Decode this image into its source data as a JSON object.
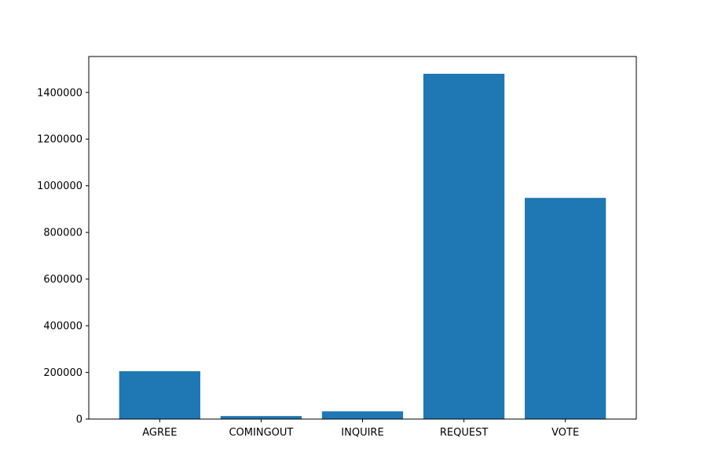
{
  "chart_data": {
    "type": "bar",
    "title": "",
    "xlabel": "",
    "ylabel": "",
    "categories": [
      "AGREE",
      "COMINGOUT",
      "INQUIRE",
      "REQUEST",
      "VOTE"
    ],
    "values": [
      205000,
      13000,
      33000,
      1480000,
      948000
    ],
    "ylim": [
      0,
      1554000
    ],
    "yticks": [
      0,
      200000,
      400000,
      600000,
      800000,
      1000000,
      1200000,
      1400000
    ],
    "ytick_labels": [
      "0",
      "200000",
      "400000",
      "600000",
      "800000",
      "1000000",
      "1200000",
      "1400000"
    ],
    "bar_color": "#1f77b4",
    "grid": false,
    "legend": false
  }
}
